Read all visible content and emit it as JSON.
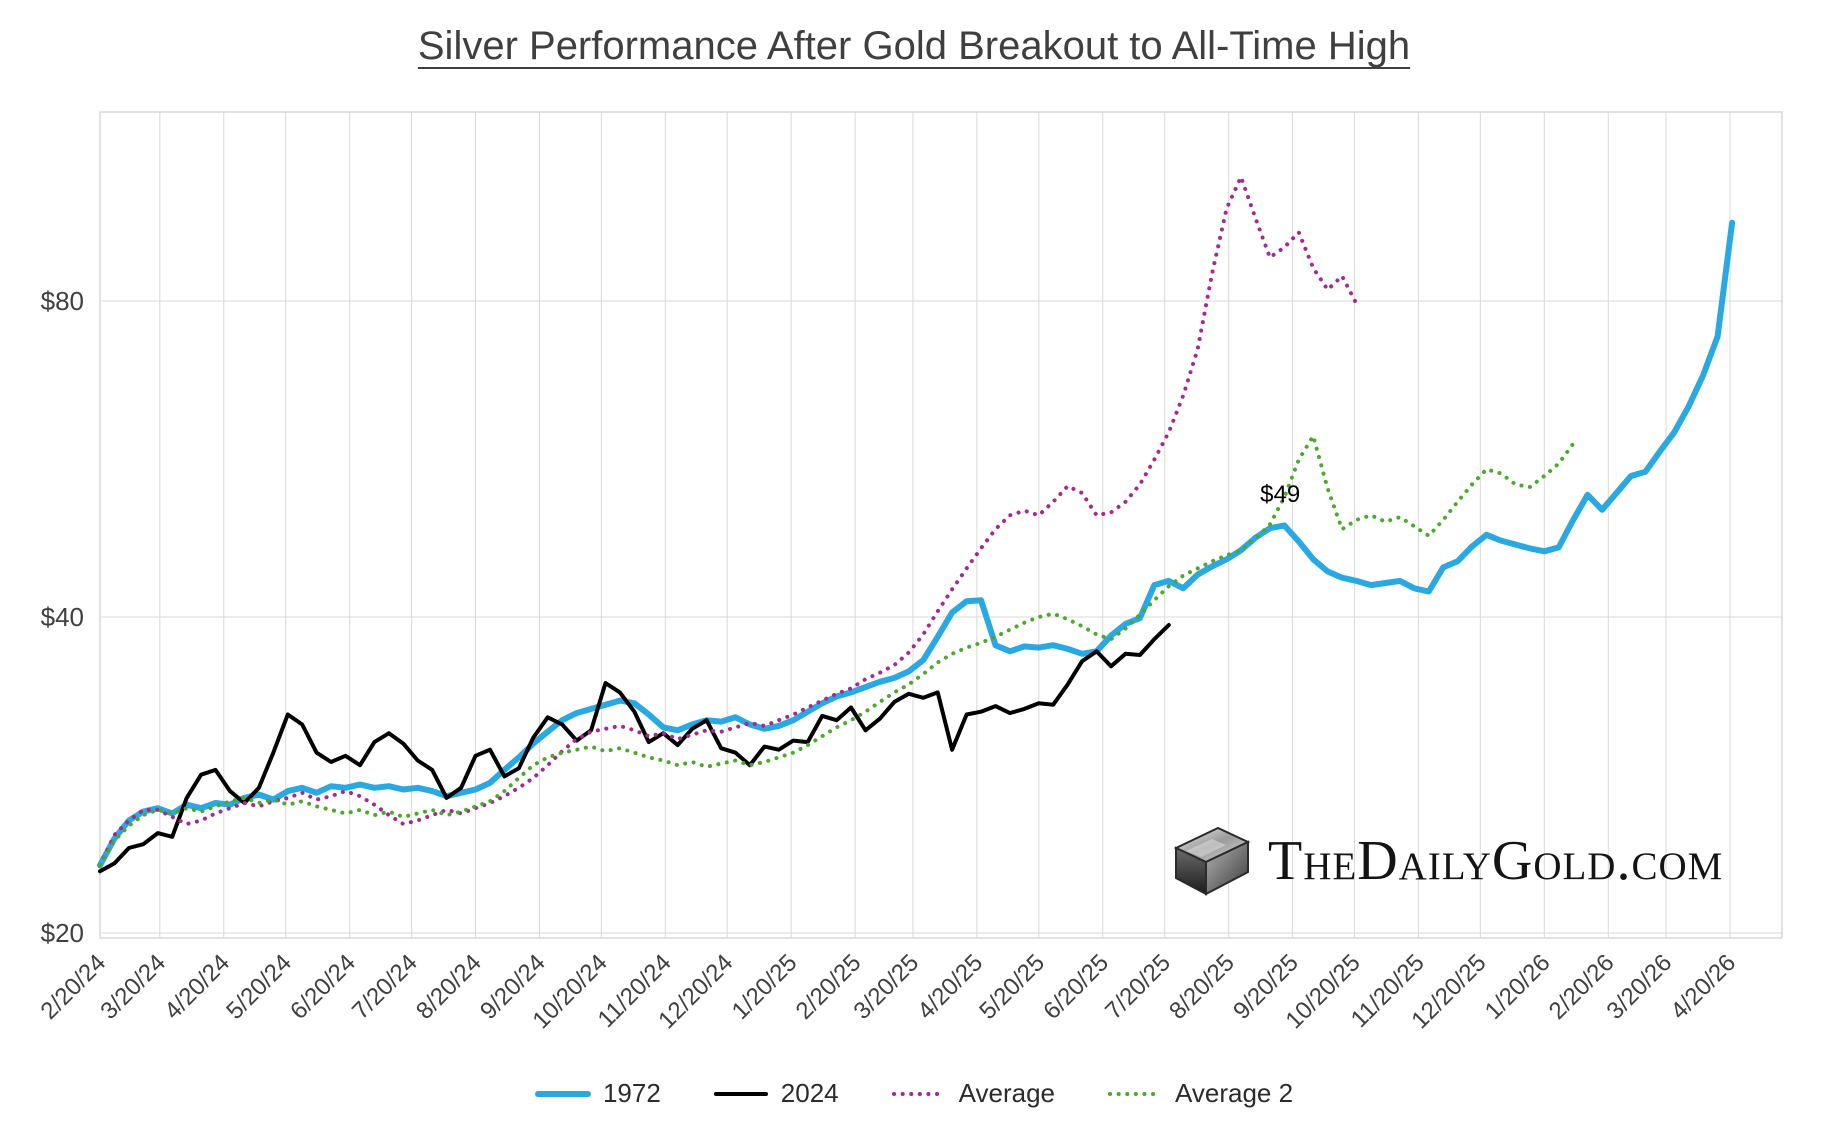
{
  "title": "Silver Performance After Gold Breakout to All-Time High",
  "watermark": {
    "text": "TheDailyGold.com"
  },
  "chart_data": {
    "type": "line",
    "title": "Silver Performance After Gold Breakout to All-Time High",
    "y_axis": {
      "scale": "log2",
      "unit": "USD",
      "ticks": [
        {
          "label": "$20",
          "value": 20
        },
        {
          "label": "$40",
          "value": 40
        },
        {
          "label": "$80",
          "value": 80
        }
      ],
      "domain": [
        19.5,
        121
      ]
    },
    "x_axis": {
      "unit": "date",
      "domain_days": [
        0,
        790
      ],
      "ticks": [
        {
          "label": "2/20/24",
          "day": 0
        },
        {
          "label": "3/20/24",
          "day": 29
        },
        {
          "label": "4/20/24",
          "day": 60
        },
        {
          "label": "5/20/24",
          "day": 90
        },
        {
          "label": "6/20/24",
          "day": 121
        },
        {
          "label": "7/20/24",
          "day": 151
        },
        {
          "label": "8/20/24",
          "day": 182
        },
        {
          "label": "9/20/24",
          "day": 213
        },
        {
          "label": "10/20/24",
          "day": 243
        },
        {
          "label": "11/20/24",
          "day": 274
        },
        {
          "label": "12/20/24",
          "day": 304
        },
        {
          "label": "1/20/25",
          "day": 335
        },
        {
          "label": "2/20/25",
          "day": 366
        },
        {
          "label": "3/20/25",
          "day": 394
        },
        {
          "label": "4/20/25",
          "day": 425
        },
        {
          "label": "5/20/25",
          "day": 455
        },
        {
          "label": "6/20/25",
          "day": 486
        },
        {
          "label": "7/20/25",
          "day": 516
        },
        {
          "label": "8/20/25",
          "day": 547
        },
        {
          "label": "9/20/25",
          "day": 578
        },
        {
          "label": "10/20/25",
          "day": 608
        },
        {
          "label": "11/20/25",
          "day": 639
        },
        {
          "label": "12/20/25",
          "day": 669
        },
        {
          "label": "1/20/26",
          "day": 700
        },
        {
          "label": "2/20/26",
          "day": 731
        },
        {
          "label": "3/20/26",
          "day": 759
        },
        {
          "label": "4/20/26",
          "day": 790
        }
      ]
    },
    "legend_position": "bottom",
    "grid": true,
    "series": [
      {
        "name": "1972",
        "color": "#29a8e1",
        "line": "solid",
        "width": 6,
        "start_week": 0,
        "weekly_values": [
          23.2,
          24.6,
          25.6,
          26.1,
          26.3,
          26.0,
          26.5,
          26.3,
          26.6,
          26.5,
          26.9,
          27.1,
          26.8,
          27.3,
          27.5,
          27.2,
          27.6,
          27.5,
          27.7,
          27.5,
          27.6,
          27.4,
          27.5,
          27.3,
          27.0,
          27.2,
          27.4,
          27.8,
          28.6,
          29.4,
          30.3,
          31.1,
          31.9,
          32.4,
          32.7,
          33.0,
          33.3,
          33.1,
          32.3,
          31.4,
          31.2,
          31.6,
          31.9,
          31.8,
          32.1,
          31.6,
          31.3,
          31.5,
          31.9,
          32.5,
          33.1,
          33.6,
          33.9,
          34.3,
          34.7,
          35.0,
          35.5,
          36.4,
          38.3,
          40.4,
          41.4,
          41.5,
          37.6,
          37.1,
          37.5,
          37.4,
          37.6,
          37.3,
          36.9,
          37.1,
          38.4,
          39.4,
          39.9,
          42.9,
          43.3,
          42.6,
          43.9,
          44.7,
          45.4,
          46.3,
          47.6,
          48.6,
          48.9,
          47.2,
          45.4,
          44.2,
          43.6,
          43.3,
          42.9,
          43.1,
          43.3,
          42.6,
          42.3,
          44.6,
          45.2,
          46.7,
          47.9,
          47.3,
          46.9,
          46.5,
          46.2,
          46.6,
          49.5,
          52.3,
          50.6,
          52.5,
          54.5,
          55.0,
          57.5,
          60.0,
          63.5,
          68.0,
          74.0,
          95.0
        ]
      },
      {
        "name": "2024",
        "color": "#000000",
        "line": "solid",
        "width": 4,
        "start_week": 0,
        "weekly_values": [
          22.9,
          23.3,
          24.1,
          24.3,
          24.9,
          24.7,
          26.9,
          28.3,
          28.6,
          27.3,
          26.6,
          27.5,
          29.7,
          32.3,
          31.6,
          29.7,
          29.1,
          29.5,
          28.9,
          30.4,
          31.0,
          30.3,
          29.2,
          28.6,
          26.9,
          27.5,
          29.5,
          29.9,
          28.2,
          28.7,
          30.7,
          32.1,
          31.6,
          30.5,
          31.2,
          34.6,
          33.9,
          32.5,
          30.4,
          31.0,
          30.2,
          31.3,
          31.9,
          30.0,
          29.7,
          28.9,
          30.1,
          29.9,
          30.5,
          30.4,
          32.2,
          31.9,
          32.8,
          31.2,
          32.0,
          33.2,
          33.8,
          33.5,
          33.9,
          29.9,
          32.3,
          32.5,
          32.9,
          32.4,
          32.7,
          33.1,
          33.0,
          34.5,
          36.3,
          37.1,
          35.9,
          36.9,
          36.8,
          38.1,
          39.3
        ]
      },
      {
        "name": "Average",
        "color": "#a02b93",
        "line": "dotted",
        "width": 4,
        "start_week": 0,
        "weekly_values": [
          23.2,
          24.8,
          25.6,
          26.2,
          26.2,
          25.8,
          25.4,
          25.6,
          26.0,
          26.3,
          26.6,
          26.4,
          26.7,
          26.9,
          27.2,
          26.8,
          27.0,
          27.3,
          27.0,
          26.5,
          25.9,
          25.4,
          25.6,
          25.9,
          26.2,
          26.0,
          26.3,
          26.6,
          27.0,
          27.5,
          28.1,
          28.9,
          29.8,
          30.6,
          31.1,
          31.3,
          31.5,
          31.2,
          30.8,
          31.0,
          30.6,
          30.9,
          31.2,
          31.1,
          31.4,
          31.7,
          31.5,
          31.9,
          32.3,
          32.8,
          33.3,
          33.8,
          34.2,
          34.9,
          35.4,
          36.0,
          37.0,
          38.5,
          40.5,
          42.5,
          44.5,
          46.5,
          48.5,
          50.0,
          50.5,
          50.0,
          51.5,
          53.3,
          52.5,
          50.0,
          50.3,
          51.5,
          53.5,
          56.5,
          60.0,
          65.0,
          72.0,
          85.0,
          98.0,
          105.0,
          96.0,
          88.0,
          90.0,
          93.0,
          86.0,
          82.0,
          84.5,
          79.5
        ]
      },
      {
        "name": "Average 2",
        "color": "#4ea72e",
        "line": "dotted",
        "width": 4,
        "start_week": 0,
        "weekly_values": [
          23.2,
          24.5,
          25.3,
          25.9,
          26.2,
          26.0,
          26.3,
          26.1,
          26.4,
          26.7,
          26.9,
          26.6,
          26.8,
          26.5,
          26.7,
          26.4,
          26.2,
          26.0,
          26.2,
          25.9,
          26.1,
          25.8,
          26.0,
          26.2,
          25.9,
          26.1,
          26.4,
          26.7,
          27.3,
          28.1,
          28.9,
          29.4,
          29.7,
          29.9,
          30.1,
          29.8,
          30.0,
          29.7,
          29.4,
          29.2,
          28.9,
          29.1,
          28.8,
          29.0,
          29.2,
          28.9,
          29.1,
          29.4,
          29.7,
          30.2,
          30.8,
          31.4,
          31.9,
          32.5,
          33.2,
          33.9,
          34.5,
          35.3,
          36.2,
          36.9,
          37.4,
          37.8,
          38.3,
          38.9,
          39.5,
          40.0,
          40.3,
          39.8,
          39.2,
          38.5,
          38.1,
          39.0,
          40.2,
          41.5,
          42.8,
          43.8,
          44.5,
          45.2,
          45.8,
          46.3,
          47.5,
          49.0,
          52.0,
          56.5,
          59.5,
          53.0,
          48.5,
          49.5,
          50.0,
          49.3,
          49.8,
          48.8,
          47.8,
          49.5,
          51.5,
          53.5,
          55.3,
          54.8,
          53.5,
          53.2,
          54.5,
          56.0,
          58.5
        ]
      }
    ],
    "annotations": [
      {
        "text": "$49",
        "day": 572,
        "value": 51.5
      }
    ]
  }
}
